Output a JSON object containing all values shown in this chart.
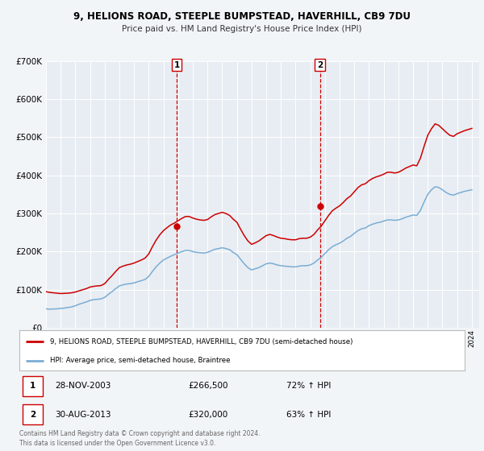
{
  "title1": "9, HELIONS ROAD, STEEPLE BUMPSTEAD, HAVERHILL, CB9 7DU",
  "title2": "Price paid vs. HM Land Registry's House Price Index (HPI)",
  "bg_color": "#f2f5f8",
  "plot_bg_color": "#e8edf3",
  "grid_color": "#ffffff",
  "red_color": "#cc0000",
  "blue_color": "#7aadd4",
  "marker1_x": 2003.91,
  "marker1_y": 266500,
  "marker2_x": 2013.66,
  "marker2_y": 320000,
  "vline1_x": 2003.91,
  "vline2_x": 2013.66,
  "ylim": [
    0,
    700000
  ],
  "xlim": [
    1995,
    2024.5
  ],
  "legend_label_red": "9, HELIONS ROAD, STEEPLE BUMPSTEAD, HAVERHILL, CB9 7DU (semi-detached house)",
  "legend_label_blue": "HPI: Average price, semi-detached house, Braintree",
  "table_row1": [
    "1",
    "28-NOV-2003",
    "£266,500",
    "72% ↑ HPI"
  ],
  "table_row2": [
    "2",
    "30-AUG-2013",
    "£320,000",
    "63% ↑ HPI"
  ],
  "footer1": "Contains HM Land Registry data © Crown copyright and database right 2024.",
  "footer2": "This data is licensed under the Open Government Licence v3.0.",
  "hpi_data_x": [
    1995.0,
    1995.25,
    1995.5,
    1995.75,
    1996.0,
    1996.25,
    1996.5,
    1996.75,
    1997.0,
    1997.25,
    1997.5,
    1997.75,
    1998.0,
    1998.25,
    1998.5,
    1998.75,
    1999.0,
    1999.25,
    1999.5,
    1999.75,
    2000.0,
    2000.25,
    2000.5,
    2000.75,
    2001.0,
    2001.25,
    2001.5,
    2001.75,
    2002.0,
    2002.25,
    2002.5,
    2002.75,
    2003.0,
    2003.25,
    2003.5,
    2003.75,
    2004.0,
    2004.25,
    2004.5,
    2004.75,
    2005.0,
    2005.25,
    2005.5,
    2005.75,
    2006.0,
    2006.25,
    2006.5,
    2006.75,
    2007.0,
    2007.25,
    2007.5,
    2007.75,
    2008.0,
    2008.25,
    2008.5,
    2008.75,
    2009.0,
    2009.25,
    2009.5,
    2009.75,
    2010.0,
    2010.25,
    2010.5,
    2010.75,
    2011.0,
    2011.25,
    2011.5,
    2011.75,
    2012.0,
    2012.25,
    2012.5,
    2012.75,
    2013.0,
    2013.25,
    2013.5,
    2013.75,
    2014.0,
    2014.25,
    2014.5,
    2014.75,
    2015.0,
    2015.25,
    2015.5,
    2015.75,
    2016.0,
    2016.25,
    2016.5,
    2016.75,
    2017.0,
    2017.25,
    2017.5,
    2017.75,
    2018.0,
    2018.25,
    2018.5,
    2018.75,
    2019.0,
    2019.25,
    2019.5,
    2019.75,
    2020.0,
    2020.25,
    2020.5,
    2020.75,
    2021.0,
    2021.25,
    2021.5,
    2021.75,
    2022.0,
    2022.25,
    2022.5,
    2022.75,
    2023.0,
    2023.25,
    2023.5,
    2023.75,
    2024.0
  ],
  "hpi_data_y": [
    50000,
    49000,
    49500,
    50000,
    51000,
    52000,
    53500,
    55000,
    58000,
    62000,
    65000,
    68000,
    72000,
    74000,
    75000,
    76000,
    80000,
    88000,
    95000,
    103000,
    110000,
    113000,
    115000,
    116000,
    118000,
    121000,
    124000,
    127000,
    135000,
    148000,
    160000,
    170000,
    178000,
    183000,
    188000,
    192000,
    196000,
    200000,
    203000,
    203000,
    200000,
    198000,
    197000,
    196000,
    198000,
    202000,
    206000,
    208000,
    210000,
    208000,
    205000,
    198000,
    192000,
    180000,
    168000,
    158000,
    152000,
    155000,
    158000,
    163000,
    168000,
    170000,
    168000,
    165000,
    163000,
    162000,
    161000,
    160000,
    160000,
    162000,
    163000,
    163000,
    165000,
    170000,
    178000,
    185000,
    195000,
    205000,
    213000,
    218000,
    222000,
    228000,
    235000,
    240000,
    248000,
    255000,
    260000,
    262000,
    268000,
    272000,
    275000,
    277000,
    280000,
    283000,
    283000,
    282000,
    283000,
    286000,
    290000,
    293000,
    296000,
    295000,
    308000,
    330000,
    350000,
    362000,
    370000,
    368000,
    362000,
    355000,
    350000,
    348000,
    352000,
    355000,
    358000,
    360000,
    362000
  ],
  "red_data_x": [
    1995.0,
    1995.25,
    1995.5,
    1995.75,
    1996.0,
    1996.25,
    1996.5,
    1996.75,
    1997.0,
    1997.25,
    1997.5,
    1997.75,
    1998.0,
    1998.25,
    1998.5,
    1998.75,
    1999.0,
    1999.25,
    1999.5,
    1999.75,
    2000.0,
    2000.25,
    2000.5,
    2000.75,
    2001.0,
    2001.25,
    2001.5,
    2001.75,
    2002.0,
    2002.25,
    2002.5,
    2002.75,
    2003.0,
    2003.25,
    2003.5,
    2003.75,
    2004.0,
    2004.25,
    2004.5,
    2004.75,
    2005.0,
    2005.25,
    2005.5,
    2005.75,
    2006.0,
    2006.25,
    2006.5,
    2006.75,
    2007.0,
    2007.25,
    2007.5,
    2007.75,
    2008.0,
    2008.25,
    2008.5,
    2008.75,
    2009.0,
    2009.25,
    2009.5,
    2009.75,
    2010.0,
    2010.25,
    2010.5,
    2010.75,
    2011.0,
    2011.25,
    2011.5,
    2011.75,
    2012.0,
    2012.25,
    2012.5,
    2012.75,
    2013.0,
    2013.25,
    2013.5,
    2013.75,
    2014.0,
    2014.25,
    2014.5,
    2014.75,
    2015.0,
    2015.25,
    2015.5,
    2015.75,
    2016.0,
    2016.25,
    2016.5,
    2016.75,
    2017.0,
    2017.25,
    2017.5,
    2017.75,
    2018.0,
    2018.25,
    2018.5,
    2018.75,
    2019.0,
    2019.25,
    2019.5,
    2019.75,
    2020.0,
    2020.25,
    2020.5,
    2020.75,
    2021.0,
    2021.25,
    2021.5,
    2021.75,
    2022.0,
    2022.25,
    2022.5,
    2022.75,
    2023.0,
    2023.25,
    2023.5,
    2023.75,
    2024.0
  ],
  "red_data_y": [
    95000,
    93000,
    92000,
    91000,
    90000,
    90500,
    91000,
    92000,
    94000,
    97000,
    100000,
    103000,
    107000,
    109000,
    110000,
    111000,
    116000,
    127000,
    137000,
    148000,
    158000,
    162000,
    165000,
    167000,
    170000,
    174000,
    178000,
    183000,
    194000,
    213000,
    230000,
    244000,
    255000,
    263000,
    270000,
    275000,
    281000,
    287000,
    292000,
    292000,
    288000,
    285000,
    283000,
    282000,
    284000,
    291000,
    297000,
    300000,
    303000,
    300000,
    295000,
    285000,
    277000,
    259000,
    242000,
    228000,
    219000,
    223000,
    228000,
    235000,
    242000,
    245000,
    242000,
    238000,
    235000,
    234000,
    232000,
    231000,
    231000,
    234000,
    235000,
    235000,
    238000,
    245000,
    257000,
    267000,
    281000,
    295000,
    307000,
    314000,
    320000,
    329000,
    339000,
    346000,
    357000,
    368000,
    375000,
    378000,
    386000,
    392000,
    396000,
    399000,
    403000,
    408000,
    408000,
    406000,
    408000,
    413000,
    419000,
    423000,
    427000,
    425000,
    445000,
    476000,
    505000,
    522000,
    535000,
    531000,
    522000,
    513000,
    505000,
    502000,
    509000,
    513000,
    517000,
    520000,
    523000
  ]
}
